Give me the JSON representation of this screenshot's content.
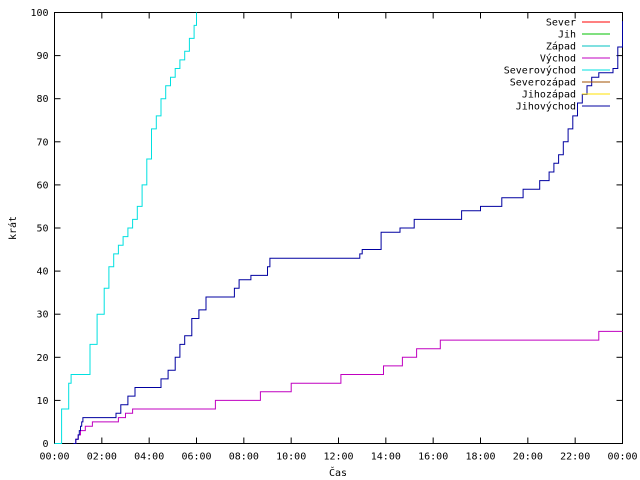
{
  "chart_data": {
    "type": "line",
    "title": "",
    "xlabel": "Čas",
    "ylabel": "krát",
    "xlim": [
      0,
      24
    ],
    "ylim": [
      0,
      100
    ],
    "grid": false,
    "legend_position": "top-right",
    "x_ticks": [
      {
        "value": 0,
        "label": "00:00"
      },
      {
        "value": 2,
        "label": "02:00"
      },
      {
        "value": 4,
        "label": "04:00"
      },
      {
        "value": 6,
        "label": "06:00"
      },
      {
        "value": 8,
        "label": "08:00"
      },
      {
        "value": 10,
        "label": "10:00"
      },
      {
        "value": 12,
        "label": "12:00"
      },
      {
        "value": 14,
        "label": "14:00"
      },
      {
        "value": 16,
        "label": "16:00"
      },
      {
        "value": 18,
        "label": "18:00"
      },
      {
        "value": 20,
        "label": "20:00"
      },
      {
        "value": 22,
        "label": "22:00"
      },
      {
        "value": 24,
        "label": "00:00"
      }
    ],
    "y_ticks": [
      {
        "value": 0,
        "label": "0"
      },
      {
        "value": 10,
        "label": "10"
      },
      {
        "value": 20,
        "label": "20"
      },
      {
        "value": 30,
        "label": "30"
      },
      {
        "value": 40,
        "label": "40"
      },
      {
        "value": 50,
        "label": "50"
      },
      {
        "value": 60,
        "label": "60"
      },
      {
        "value": 70,
        "label": "70"
      },
      {
        "value": 80,
        "label": "80"
      },
      {
        "value": 90,
        "label": "90"
      },
      {
        "value": 100,
        "label": "100"
      }
    ],
    "series": [
      {
        "name": "Sever",
        "color": "#ff0000",
        "x": [],
        "y": []
      },
      {
        "name": "Jih",
        "color": "#00c000",
        "x": [],
        "y": []
      },
      {
        "name": "Západ",
        "color": "#00c0c0",
        "x": [],
        "y": []
      },
      {
        "name": "Východ",
        "color": "#c000c0",
        "x": [
          0.85,
          0.9,
          1.0,
          1.1,
          1.3,
          1.6,
          2.6,
          2.7,
          3.0,
          3.3,
          6.7,
          6.8,
          8.6,
          8.7,
          9.9,
          10.0,
          12.0,
          12.1,
          13.8,
          13.9,
          14.6,
          14.7,
          15.2,
          15.3,
          16.2,
          16.3,
          22.9,
          23.0,
          24.0
        ],
        "y": [
          0,
          1,
          2,
          3,
          4,
          5,
          5,
          6,
          7,
          8,
          8,
          10,
          10,
          12,
          12,
          14,
          14,
          16,
          16,
          18,
          18,
          20,
          20,
          22,
          22,
          24,
          24,
          26,
          26
        ]
      },
      {
        "name": "Severovýchod",
        "color": "#00e0e0",
        "x": [
          0.0,
          0.3,
          0.6,
          0.7,
          1.2,
          1.5,
          1.8,
          2.1,
          2.3,
          2.5,
          2.7,
          2.9,
          3.1,
          3.3,
          3.5,
          3.7,
          3.9,
          4.1,
          4.3,
          4.5,
          4.7,
          4.9,
          5.1,
          5.3,
          5.5,
          5.7,
          5.9,
          6.0
        ],
        "y": [
          0,
          8,
          14,
          16,
          16,
          23,
          30,
          36,
          41,
          44,
          46,
          48,
          50,
          52,
          55,
          60,
          66,
          73,
          76,
          80,
          83,
          85,
          87,
          89,
          91,
          94,
          97,
          100
        ]
      },
      {
        "name": "Severozápad",
        "color": "#a05000",
        "x": [],
        "y": []
      },
      {
        "name": "Jihozápad",
        "color": "#ffe000",
        "x": [],
        "y": []
      },
      {
        "name": "Jihovýchod",
        "color": "#0000a0",
        "x": [
          0.8,
          0.9,
          1.0,
          1.05,
          1.1,
          1.15,
          1.2,
          2.4,
          2.6,
          2.8,
          3.1,
          3.4,
          4.2,
          4.5,
          4.8,
          5.1,
          5.3,
          5.5,
          5.8,
          6.1,
          6.4,
          6.8,
          7.3,
          7.6,
          7.8,
          8.3,
          8.6,
          9.0,
          9.1,
          12.0,
          12.2,
          12.9,
          13.0,
          13.7,
          13.8,
          14.5,
          14.6,
          15.1,
          15.2,
          16.2,
          16.3,
          17.1,
          17.2,
          17.9,
          18.0,
          18.8,
          18.9,
          19.7,
          19.8,
          20.3,
          20.5,
          20.9,
          21.1,
          21.3,
          21.5,
          21.7,
          21.9,
          22.1,
          22.3,
          22.5,
          22.7,
          23.0,
          23.3,
          23.6,
          23.8,
          24.0
        ],
        "y": [
          0,
          1,
          2,
          3,
          4,
          5,
          6,
          6,
          7,
          9,
          11,
          13,
          13,
          15,
          17,
          20,
          23,
          25,
          29,
          31,
          34,
          34,
          34,
          36,
          38,
          39,
          39,
          41,
          43,
          43,
          43,
          44,
          45,
          45,
          49,
          49,
          50,
          50,
          52,
          52,
          52,
          52,
          54,
          54,
          55,
          55,
          57,
          57,
          59,
          59,
          61,
          63,
          65,
          67,
          70,
          73,
          76,
          79,
          81,
          83,
          85,
          86,
          86,
          87,
          92,
          98
        ]
      }
    ]
  }
}
